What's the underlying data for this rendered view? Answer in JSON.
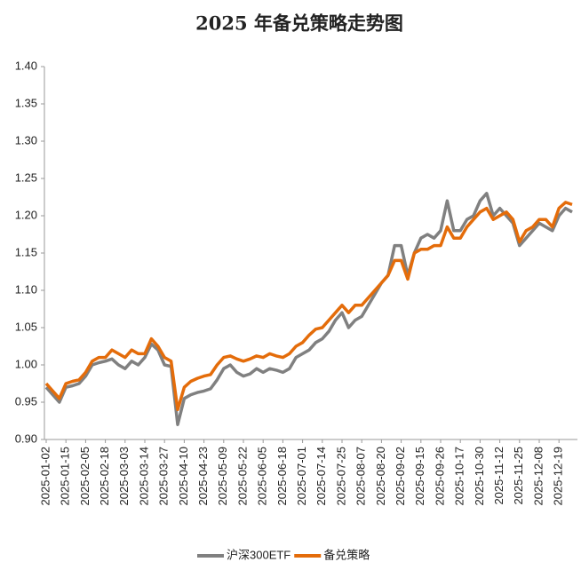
{
  "chart_data": {
    "type": "line",
    "title": "2025 年备兑策略走势图",
    "categories": [
      "2025-01-02",
      null,
      null,
      "2025-01-15",
      null,
      null,
      "2025-02-05",
      null,
      null,
      "2025-02-18",
      null,
      null,
      "2025-03-03",
      null,
      null,
      "2025-03-14",
      null,
      null,
      "2025-03-27",
      null,
      null,
      "2025-04-10",
      null,
      null,
      "2025-04-23",
      null,
      null,
      "2025-05-09",
      null,
      null,
      "2025-05-22",
      null,
      null,
      "2025-06-05",
      null,
      null,
      "2025-06-18",
      null,
      null,
      "2025-07-01",
      null,
      null,
      "2025-07-14",
      null,
      null,
      "2025-07-25",
      null,
      null,
      "2025-08-07",
      null,
      null,
      "2025-08-20",
      null,
      null,
      "2025-09-02",
      null,
      null,
      "2025-09-15",
      null,
      null,
      "2025-09-26",
      null,
      null,
      "2025-10-17",
      null,
      null,
      "2025-10-30",
      null,
      null,
      "2025-11-12",
      null,
      null,
      "2025-11-25",
      null,
      null,
      "2025-12-08",
      null,
      null,
      "2025-12-19",
      null,
      null
    ],
    "series": [
      {
        "name": "沪深300ETF",
        "color": "#808080",
        "values": [
          0.97,
          0.96,
          0.95,
          0.97,
          0.972,
          0.975,
          0.985,
          1.0,
          1.003,
          1.005,
          1.008,
          1.0,
          0.995,
          1.005,
          1.0,
          1.01,
          1.028,
          1.02,
          1.0,
          0.998,
          0.92,
          0.955,
          0.96,
          0.963,
          0.965,
          0.968,
          0.98,
          0.995,
          1.0,
          0.99,
          0.985,
          0.988,
          0.995,
          0.99,
          0.995,
          0.993,
          0.99,
          0.995,
          1.01,
          1.015,
          1.02,
          1.03,
          1.035,
          1.045,
          1.06,
          1.07,
          1.05,
          1.06,
          1.065,
          1.08,
          1.095,
          1.11,
          1.12,
          1.16,
          1.16,
          1.12,
          1.15,
          1.17,
          1.175,
          1.17,
          1.18,
          1.22,
          1.18,
          1.18,
          1.195,
          1.2,
          1.22,
          1.23,
          1.2,
          1.21,
          1.2,
          1.19,
          1.16,
          1.17,
          1.18,
          1.19,
          1.185,
          1.18,
          1.2,
          1.21,
          1.205
        ]
      },
      {
        "name": "备兑策略",
        "color": "#e46c0a",
        "values": [
          0.975,
          0.965,
          0.955,
          0.975,
          0.978,
          0.98,
          0.99,
          1.005,
          1.01,
          1.01,
          1.02,
          1.015,
          1.01,
          1.02,
          1.015,
          1.015,
          1.035,
          1.025,
          1.01,
          1.005,
          0.94,
          0.97,
          0.978,
          0.982,
          0.985,
          0.987,
          1.0,
          1.01,
          1.012,
          1.008,
          1.005,
          1.008,
          1.012,
          1.01,
          1.015,
          1.012,
          1.01,
          1.015,
          1.025,
          1.03,
          1.04,
          1.048,
          1.05,
          1.06,
          1.07,
          1.08,
          1.07,
          1.08,
          1.08,
          1.09,
          1.1,
          1.11,
          1.12,
          1.14,
          1.14,
          1.115,
          1.15,
          1.155,
          1.155,
          1.16,
          1.16,
          1.185,
          1.17,
          1.17,
          1.185,
          1.195,
          1.205,
          1.21,
          1.195,
          1.2,
          1.205,
          1.195,
          1.165,
          1.18,
          1.185,
          1.195,
          1.195,
          1.185,
          1.21,
          1.218,
          1.215
        ]
      }
    ],
    "ylim": [
      0.9,
      1.4
    ],
    "yticks": [
      {
        "value": 0.9,
        "label": "0.90"
      },
      {
        "value": 0.95,
        "label": "0.95"
      },
      {
        "value": 1.0,
        "label": "1.00"
      },
      {
        "value": 1.05,
        "label": "1.05"
      },
      {
        "value": 1.1,
        "label": "1.10"
      },
      {
        "value": 1.15,
        "label": "1.15"
      },
      {
        "value": 1.2,
        "label": "1.20"
      },
      {
        "value": 1.25,
        "label": "1.25"
      },
      {
        "value": 1.3,
        "label": "1.30"
      },
      {
        "value": 1.35,
        "label": "1.35"
      },
      {
        "value": 1.4,
        "label": "1.40"
      }
    ],
    "grid": false,
    "legend": "bottom"
  }
}
